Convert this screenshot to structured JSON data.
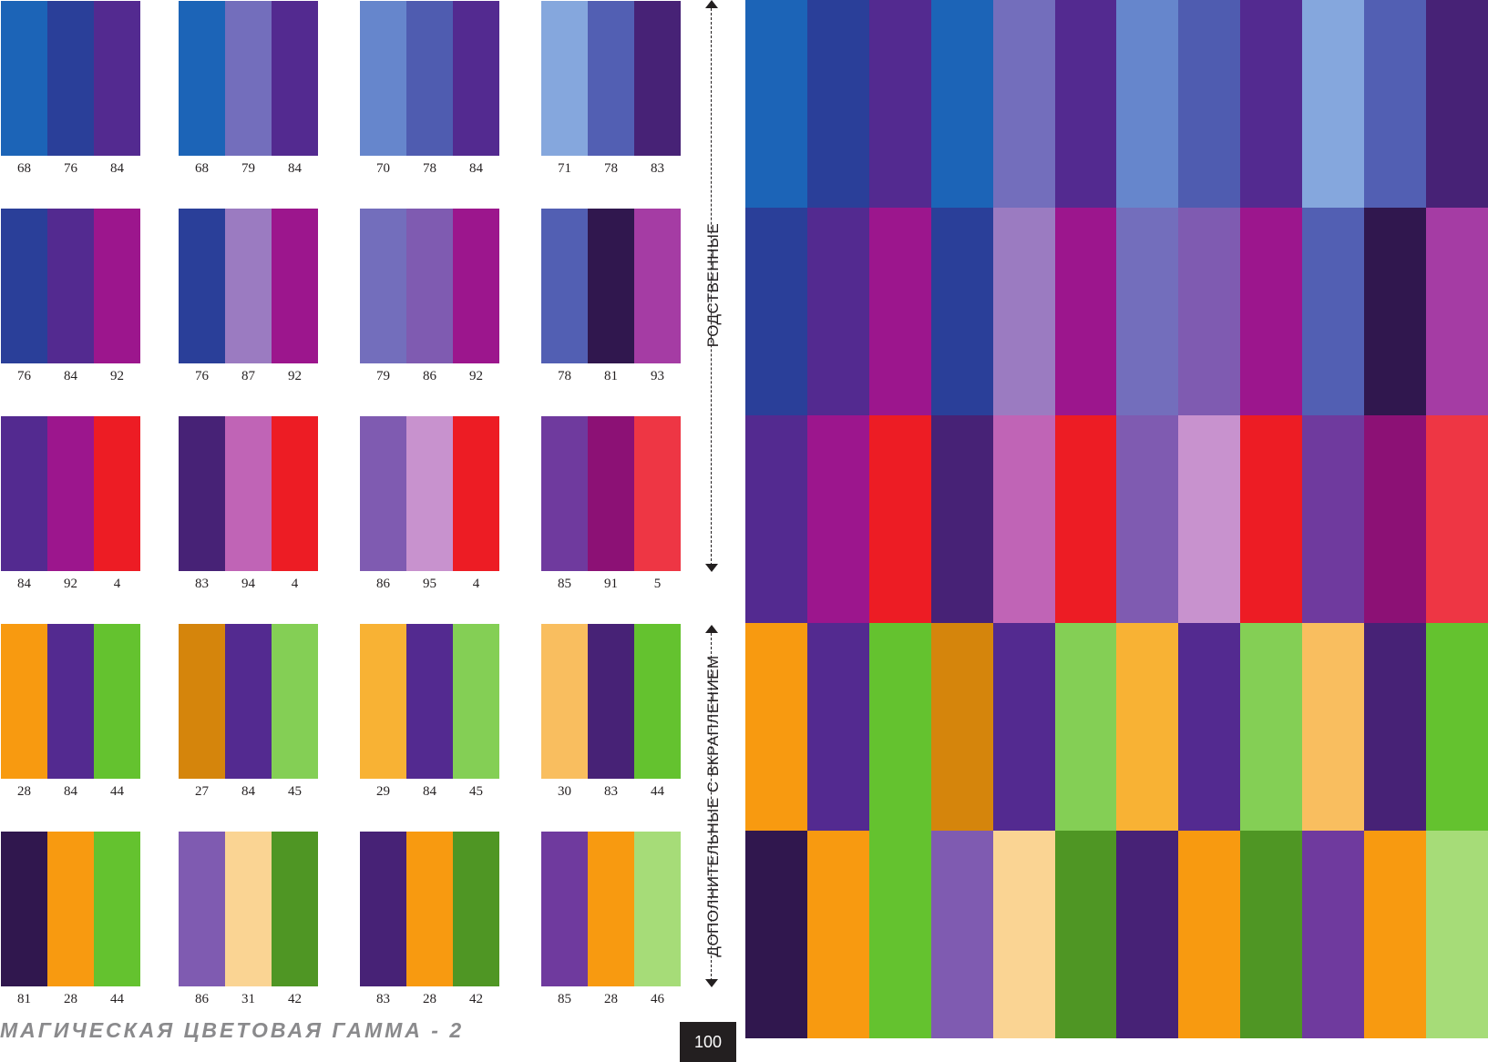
{
  "palettes": [
    {
      "colors": [
        "#1c64b7",
        "#2a3f99",
        "#532a90"
      ],
      "numbers": [
        "68",
        "76",
        "84"
      ]
    },
    {
      "colors": [
        "#1c64b7",
        "#736ebc",
        "#532a90"
      ],
      "numbers": [
        "68",
        "79",
        "84"
      ]
    },
    {
      "colors": [
        "#6686cc",
        "#4f5cb0",
        "#532a90"
      ],
      "numbers": [
        "70",
        "78",
        "84"
      ]
    },
    {
      "colors": [
        "#85a7dd",
        "#525fb3",
        "#472276"
      ],
      "numbers": [
        "71",
        "78",
        "83"
      ]
    },
    {
      "colors": [
        "#2a3f99",
        "#532a90",
        "#9c168d"
      ],
      "numbers": [
        "76",
        "84",
        "92"
      ]
    },
    {
      "colors": [
        "#2a3f99",
        "#9b7bc1",
        "#9c168d"
      ],
      "numbers": [
        "76",
        "87",
        "92"
      ]
    },
    {
      "colors": [
        "#736ebc",
        "#7f5bb1",
        "#9c168d"
      ],
      "numbers": [
        "79",
        "86",
        "92"
      ]
    },
    {
      "colors": [
        "#525fb3",
        "#30174e",
        "#a53ca4"
      ],
      "numbers": [
        "78",
        "81",
        "93"
      ]
    },
    {
      "colors": [
        "#532a90",
        "#9c168d",
        "#ed1c24"
      ],
      "numbers": [
        "84",
        "92",
        "4"
      ]
    },
    {
      "colors": [
        "#472276",
        "#c064b6",
        "#ed1c24"
      ],
      "numbers": [
        "83",
        "94",
        "4"
      ]
    },
    {
      "colors": [
        "#7f5bb1",
        "#c892ce",
        "#ed1c24"
      ],
      "numbers": [
        "86",
        "95",
        "4"
      ]
    },
    {
      "colors": [
        "#6f3a9e",
        "#8c1175",
        "#ee3644"
      ],
      "numbers": [
        "85",
        "91",
        "5"
      ]
    },
    {
      "colors": [
        "#f89a10",
        "#532a90",
        "#64c22f"
      ],
      "numbers": [
        "28",
        "84",
        "44"
      ]
    },
    {
      "colors": [
        "#d5850c",
        "#532a90",
        "#84cf55"
      ],
      "numbers": [
        "27",
        "84",
        "45"
      ]
    },
    {
      "colors": [
        "#f8b234",
        "#532a90",
        "#84cf55"
      ],
      "numbers": [
        "29",
        "84",
        "45"
      ]
    },
    {
      "colors": [
        "#f9be5f",
        "#472276",
        "#64c22f"
      ],
      "numbers": [
        "30",
        "83",
        "44"
      ]
    },
    {
      "colors": [
        "#30174e",
        "#f89a10",
        "#64c22f"
      ],
      "numbers": [
        "81",
        "28",
        "44"
      ]
    },
    {
      "colors": [
        "#7f5bb1",
        "#fad493",
        "#4f9624"
      ],
      "numbers": [
        "86",
        "31",
        "42"
      ]
    },
    {
      "colors": [
        "#472276",
        "#f89a10",
        "#4f9624"
      ],
      "numbers": [
        "83",
        "28",
        "42"
      ]
    },
    {
      "colors": [
        "#6f3a9e",
        "#f89a10",
        "#a6dc78"
      ],
      "numbers": [
        "85",
        "28",
        "46"
      ]
    }
  ],
  "side_labels": {
    "top": "РОДСТВЕННЫЕ",
    "bottom": "ДОПОЛНИТЕЛЬНЫЕ С ВКРАПЛЕНИЕМ"
  },
  "footer": {
    "title": "МАГИЧЕСКАЯ ЦВЕТОВАЯ ГАММА - 2",
    "page_number": "100"
  }
}
